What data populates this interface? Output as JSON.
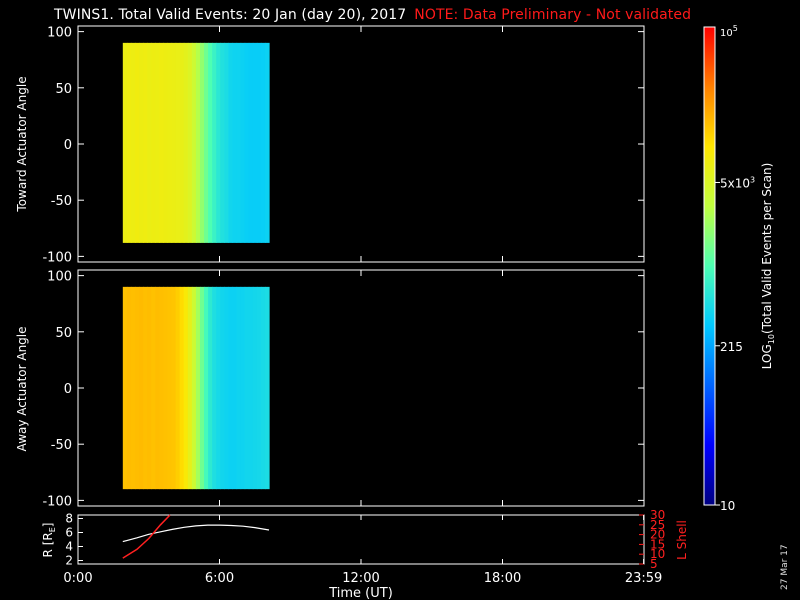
{
  "header": {
    "title": "TWINS1. Total Valid Events: 20 Jan (day  20), 2017",
    "note": "NOTE: Data Preliminary - Not validated"
  },
  "footer": {
    "date_stamp": "27 Mar 17"
  },
  "colors": {
    "background": "#000000",
    "note": "#ff1a1a",
    "axis": "#ffffff",
    "lshell": "#ff2020"
  },
  "chart_data": [
    {
      "type": "heatmap",
      "panel": "top",
      "ylabel": "Toward Actuator Angle",
      "ylim": [
        -105,
        105
      ],
      "yticks": [
        100,
        50,
        0,
        -50,
        -100
      ],
      "xlim_hours": [
        0,
        24
      ],
      "x_range_hours": [
        1.9,
        8.1
      ],
      "y_range_deg": [
        -88,
        90
      ],
      "column_levels": [
        3.85,
        3.87,
        3.86,
        3.88,
        3.86,
        3.87,
        3.84,
        3.86,
        3.85,
        3.87,
        3.86,
        3.85,
        3.84,
        3.83,
        3.82,
        3.78,
        3.72,
        3.6,
        3.45,
        3.3,
        3.15,
        3.0,
        2.88,
        2.78,
        2.72,
        2.68,
        2.62,
        2.6,
        2.6,
        2.58,
        2.56,
        2.55,
        2.55,
        2.55,
        2.56,
        2.58
      ]
    },
    {
      "type": "heatmap",
      "panel": "bottom",
      "ylabel": "Away Actuator Angle",
      "ylim": [
        -105,
        105
      ],
      "yticks": [
        100,
        50,
        0,
        -50,
        -100
      ],
      "xlim_hours": [
        0,
        24
      ],
      "x_range_hours": [
        1.9,
        8.1
      ],
      "y_range_deg": [
        -90,
        90
      ],
      "column_levels": [
        4.18,
        4.2,
        4.19,
        4.2,
        4.21,
        4.19,
        4.2,
        4.18,
        4.2,
        4.19,
        4.18,
        4.17,
        4.16,
        4.12,
        4.05,
        3.95,
        3.8,
        3.6,
        3.38,
        3.15,
        2.95,
        2.8,
        2.7,
        2.65,
        2.62,
        2.6,
        2.58,
        2.58,
        2.6,
        2.6,
        2.62,
        2.62,
        2.63,
        2.64,
        2.66,
        2.68
      ]
    },
    {
      "type": "line",
      "panel": "orbit",
      "ylabel": "R [RE]",
      "ylabel_right": "L Shell",
      "ylim": [
        1.5,
        8.5
      ],
      "yticks": [
        2,
        4,
        6,
        8
      ],
      "ylim_right": [
        5,
        30
      ],
      "yticks_right": [
        5,
        10,
        15,
        20,
        25,
        30
      ],
      "xlabel": "Time (UT)",
      "xlim_hours": [
        0,
        24
      ],
      "xtick_hours": [
        0,
        6,
        12,
        18,
        23.983
      ],
      "xtick_labels": [
        "0:00",
        "6:00",
        "12:00",
        "18:00",
        "23:59"
      ],
      "series": [
        {
          "name": "R",
          "x": [
            1.9,
            2.5,
            3.0,
            3.5,
            4.0,
            4.5,
            5.0,
            5.5,
            6.0,
            6.5,
            7.0,
            7.5,
            8.1
          ],
          "y": [
            4.7,
            5.25,
            5.75,
            6.1,
            6.45,
            6.75,
            6.95,
            7.05,
            7.05,
            7.0,
            6.9,
            6.7,
            6.35
          ]
        },
        {
          "name": "L Shell",
          "x": [
            1.9,
            2.5,
            3.0,
            3.5,
            3.9
          ],
          "y": [
            8.0,
            12.5,
            18.0,
            25.0,
            31.0
          ]
        }
      ]
    },
    {
      "type": "heatmap",
      "panel": "colorbar",
      "ylabel": "LOG10(Total Valid Events per Scan)",
      "scale": "log",
      "range": [
        10,
        100000
      ],
      "tick_labels": [
        "10",
        "215",
        "5x10^3",
        "10^5"
      ]
    }
  ]
}
